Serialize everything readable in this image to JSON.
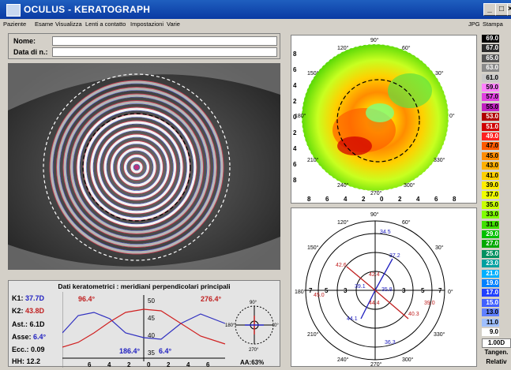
{
  "window": {
    "title": "OCULUS  -  KERATOGRAPH",
    "minimize": "_",
    "maximize": "□",
    "close": "×"
  },
  "menu": {
    "items": [
      "Paziente",
      "Esame",
      "Visualizza",
      "Lenti a contatto",
      "Impostazioni",
      "Varie"
    ],
    "right": [
      "JPG",
      "Stampa"
    ]
  },
  "patient": {
    "name_label": "Nome:",
    "dob_label": "Data di n.:",
    "name": "",
    "dob": ""
  },
  "topo_map": {
    "axis_left": [
      "8",
      "6",
      "4",
      "2",
      "0",
      "2",
      "4",
      "6",
      "8"
    ],
    "axis_bottom": [
      "8",
      "6",
      "4",
      "2",
      "0",
      "2",
      "4",
      "6",
      "8"
    ],
    "angles": [
      "90°",
      "120°",
      "60°",
      "150°",
      "30°",
      "180°",
      "0°",
      "210°",
      "330°",
      "240°",
      "300°",
      "270°"
    ]
  },
  "scale": {
    "values": [
      "69.0",
      "67.0",
      "65.0",
      "63.0",
      "61.0",
      "59.0",
      "57.0",
      "55.0",
      "53.0",
      "51.0",
      "49.0",
      "47.0",
      "45.0",
      "43.0",
      "41.0",
      "39.0",
      "37.0",
      "35.0",
      "33.0",
      "31.0",
      "29.0",
      "27.0",
      "25.0",
      "23.0",
      "21.0",
      "19.0",
      "17.0",
      "15.0",
      "13.0",
      "11.0",
      "9.0"
    ],
    "colors": [
      "#000000",
      "#2a2a2a",
      "#555555",
      "#8a8a8a",
      "#c8c8c8",
      "#ff80ff",
      "#e040e0",
      "#c020c0",
      "#b00000",
      "#d00000",
      "#ff2020",
      "#ff5a00",
      "#ff8c00",
      "#ffb000",
      "#ffd000",
      "#ffee00",
      "#f0ff00",
      "#c8ff00",
      "#80ff00",
      "#40e000",
      "#00c000",
      "#00a800",
      "#009060",
      "#00a0a0",
      "#00b0ff",
      "#0080ff",
      "#2040ff",
      "#4060ff",
      "#6080ff",
      "#a0c0ff",
      "#ffffff"
    ],
    "step_label": "1.00D",
    "mode_label": "Tangen.",
    "relative_label": "Relativ"
  },
  "rings": {
    "angles": [
      "90°",
      "120°",
      "60°",
      "150°",
      "30°",
      "180°",
      "0°",
      "210°",
      "330°",
      "240°",
      "300°",
      "270°"
    ],
    "values": [
      "34.5",
      "37.2",
      "42.6",
      "45.0",
      "42.4",
      "39.1",
      "35.8",
      "44.4",
      "39.0",
      "40.3",
      "44.1",
      "36.3"
    ],
    "markers": [
      "7",
      "5",
      "3",
      "3",
      "5",
      "7"
    ]
  },
  "kerato": {
    "title": "Dati keratometrici : meridiani perpendicolari principali",
    "k1_label": "K1:",
    "k1": "37.7D",
    "k2_label": "K2:",
    "k2": "43.8D",
    "ast_label": "Ast.:",
    "ast": "6.1D",
    "axis_label": "Asse:",
    "axis": "6.4°",
    "ecc_label": "Ecc.:",
    "ecc": "0.09",
    "hh_label": "HH:",
    "hh": "12.2",
    "angle_red": "96.4°",
    "angle_red2": "276.4°",
    "angle_blue": "186.4°",
    "angle_blue2": "6.4°",
    "y_ticks": [
      "50",
      "45",
      "40",
      "35"
    ],
    "x_ticks": [
      "6",
      "4",
      "2",
      "0",
      "2",
      "4",
      "6"
    ],
    "aa": "AA:63%",
    "mini_angles": [
      "90°",
      "180°",
      "0°",
      "270°"
    ]
  }
}
